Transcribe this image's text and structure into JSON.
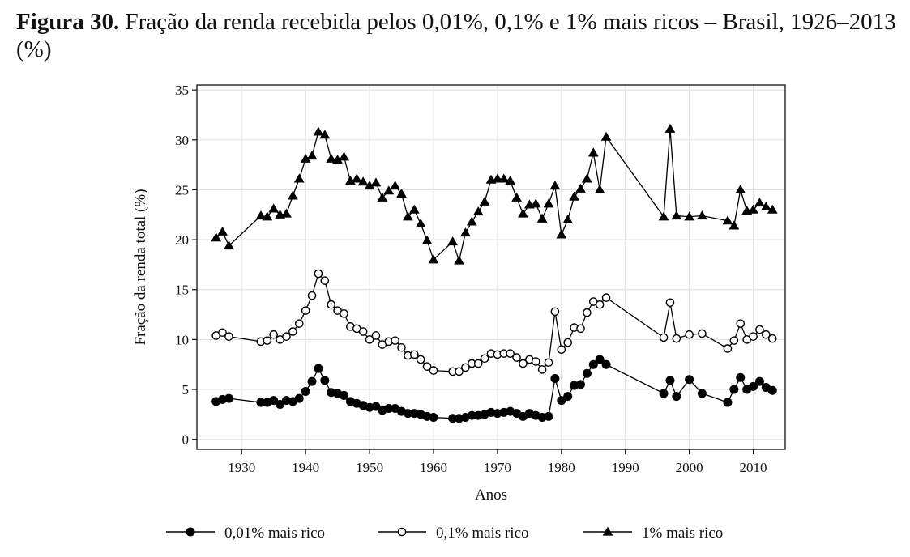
{
  "caption": {
    "label": "Figura 30.",
    "text": "Fração da renda recebida pelos 0,01%, 0,1% e 1% mais ricos – Brasil, 1926–2013 (%)"
  },
  "chart_data": {
    "type": "line",
    "title": "",
    "xlabel": "Anos",
    "ylabel": "Fração da renda total (%)",
    "xlim": [
      1923,
      2015
    ],
    "ylim": [
      -1,
      35.5
    ],
    "xticks": [
      1930,
      1940,
      1950,
      1960,
      1970,
      1980,
      1990,
      2000,
      2010
    ],
    "yticks": [
      0,
      5,
      10,
      15,
      20,
      25,
      30,
      35
    ],
    "grid": true,
    "legend_position": "bottom",
    "series": [
      {
        "name": "0,01% mais rico",
        "marker": "filled-circle",
        "points": [
          [
            1926,
            3.8
          ],
          [
            1927,
            4.0
          ],
          [
            1928,
            4.1
          ],
          [
            1933,
            3.7
          ],
          [
            1934,
            3.7
          ],
          [
            1935,
            3.9
          ],
          [
            1936,
            3.5
          ],
          [
            1937,
            3.9
          ],
          [
            1938,
            3.8
          ],
          [
            1939,
            4.1
          ],
          [
            1940,
            4.8
          ],
          [
            1941,
            5.8
          ],
          [
            1942,
            7.1
          ],
          [
            1943,
            5.9
          ],
          [
            1944,
            4.7
          ],
          [
            1945,
            4.6
          ],
          [
            1946,
            4.4
          ],
          [
            1947,
            3.8
          ],
          [
            1948,
            3.6
          ],
          [
            1949,
            3.4
          ],
          [
            1950,
            3.2
          ],
          [
            1951,
            3.3
          ],
          [
            1952,
            2.9
          ],
          [
            1953,
            3.1
          ],
          [
            1954,
            3.1
          ],
          [
            1955,
            2.8
          ],
          [
            1956,
            2.6
          ],
          [
            1957,
            2.6
          ],
          [
            1958,
            2.5
          ],
          [
            1959,
            2.3
          ],
          [
            1960,
            2.2
          ],
          [
            1963,
            2.1
          ],
          [
            1964,
            2.1
          ],
          [
            1965,
            2.2
          ],
          [
            1966,
            2.4
          ],
          [
            1967,
            2.4
          ],
          [
            1968,
            2.5
          ],
          [
            1969,
            2.7
          ],
          [
            1970,
            2.6
          ],
          [
            1971,
            2.7
          ],
          [
            1972,
            2.8
          ],
          [
            1973,
            2.6
          ],
          [
            1974,
            2.3
          ],
          [
            1975,
            2.6
          ],
          [
            1976,
            2.4
          ],
          [
            1977,
            2.2
          ],
          [
            1978,
            2.3
          ],
          [
            1979,
            6.1
          ],
          [
            1980,
            3.9
          ],
          [
            1981,
            4.3
          ],
          [
            1982,
            5.4
          ],
          [
            1983,
            5.5
          ],
          [
            1984,
            6.6
          ],
          [
            1985,
            7.5
          ],
          [
            1986,
            8.0
          ],
          [
            1987,
            7.5
          ],
          [
            1996,
            4.6
          ],
          [
            1997,
            5.9
          ],
          [
            1998,
            4.3
          ],
          [
            2000,
            6.0
          ],
          [
            2002,
            4.6
          ],
          [
            2006,
            3.7
          ],
          [
            2007,
            5.0
          ],
          [
            2008,
            6.2
          ],
          [
            2009,
            5.0
          ],
          [
            2010,
            5.3
          ],
          [
            2011,
            5.8
          ],
          [
            2012,
            5.2
          ],
          [
            2013,
            4.9
          ]
        ]
      },
      {
        "name": "0,1% mais rico",
        "marker": "open-circle",
        "points": [
          [
            1926,
            10.4
          ],
          [
            1927,
            10.7
          ],
          [
            1928,
            10.3
          ],
          [
            1933,
            9.8
          ],
          [
            1934,
            9.9
          ],
          [
            1935,
            10.5
          ],
          [
            1936,
            10.0
          ],
          [
            1937,
            10.3
          ],
          [
            1938,
            10.8
          ],
          [
            1939,
            11.6
          ],
          [
            1940,
            12.9
          ],
          [
            1941,
            14.4
          ],
          [
            1942,
            16.6
          ],
          [
            1943,
            15.9
          ],
          [
            1944,
            13.5
          ],
          [
            1945,
            12.9
          ],
          [
            1946,
            12.6
          ],
          [
            1947,
            11.3
          ],
          [
            1948,
            11.1
          ],
          [
            1949,
            10.8
          ],
          [
            1950,
            10.0
          ],
          [
            1951,
            10.4
          ],
          [
            1952,
            9.5
          ],
          [
            1953,
            9.8
          ],
          [
            1954,
            9.9
          ],
          [
            1955,
            9.2
          ],
          [
            1956,
            8.4
          ],
          [
            1957,
            8.5
          ],
          [
            1958,
            8.0
          ],
          [
            1959,
            7.3
          ],
          [
            1960,
            6.9
          ],
          [
            1963,
            6.8
          ],
          [
            1964,
            6.8
          ],
          [
            1965,
            7.2
          ],
          [
            1966,
            7.6
          ],
          [
            1967,
            7.6
          ],
          [
            1968,
            8.1
          ],
          [
            1969,
            8.6
          ],
          [
            1970,
            8.5
          ],
          [
            1971,
            8.6
          ],
          [
            1972,
            8.6
          ],
          [
            1973,
            8.2
          ],
          [
            1974,
            7.6
          ],
          [
            1975,
            8.0
          ],
          [
            1976,
            7.8
          ],
          [
            1977,
            7.0
          ],
          [
            1978,
            7.7
          ],
          [
            1979,
            12.8
          ],
          [
            1980,
            9.0
          ],
          [
            1981,
            9.7
          ],
          [
            1982,
            11.2
          ],
          [
            1983,
            11.1
          ],
          [
            1984,
            12.7
          ],
          [
            1985,
            13.8
          ],
          [
            1986,
            13.5
          ],
          [
            1987,
            14.2
          ],
          [
            1996,
            10.2
          ],
          [
            1997,
            13.7
          ],
          [
            1998,
            10.1
          ],
          [
            2000,
            10.5
          ],
          [
            2002,
            10.6
          ],
          [
            2006,
            9.1
          ],
          [
            2007,
            9.9
          ],
          [
            2008,
            11.6
          ],
          [
            2009,
            10.0
          ],
          [
            2010,
            10.3
          ],
          [
            2011,
            11.0
          ],
          [
            2012,
            10.5
          ],
          [
            2013,
            10.1
          ]
        ]
      },
      {
        "name": "1% mais rico",
        "marker": "filled-triangle",
        "points": [
          [
            1926,
            20.2
          ],
          [
            1927,
            20.8
          ],
          [
            1928,
            19.4
          ],
          [
            1933,
            22.4
          ],
          [
            1934,
            22.3
          ],
          [
            1935,
            23.1
          ],
          [
            1936,
            22.5
          ],
          [
            1937,
            22.6
          ],
          [
            1938,
            24.4
          ],
          [
            1939,
            26.1
          ],
          [
            1940,
            28.1
          ],
          [
            1941,
            28.4
          ],
          [
            1942,
            30.8
          ],
          [
            1943,
            30.5
          ],
          [
            1944,
            28.1
          ],
          [
            1945,
            28.0
          ],
          [
            1946,
            28.3
          ],
          [
            1947,
            25.9
          ],
          [
            1948,
            26.1
          ],
          [
            1949,
            25.8
          ],
          [
            1950,
            25.4
          ],
          [
            1951,
            25.7
          ],
          [
            1952,
            24.2
          ],
          [
            1953,
            24.9
          ],
          [
            1954,
            25.4
          ],
          [
            1955,
            24.6
          ],
          [
            1956,
            22.3
          ],
          [
            1957,
            23.0
          ],
          [
            1958,
            21.6
          ],
          [
            1959,
            19.9
          ],
          [
            1960,
            18.0
          ],
          [
            1963,
            19.8
          ],
          [
            1964,
            17.9
          ],
          [
            1965,
            20.7
          ],
          [
            1966,
            21.8
          ],
          [
            1967,
            22.8
          ],
          [
            1968,
            23.8
          ],
          [
            1969,
            26.0
          ],
          [
            1970,
            26.1
          ],
          [
            1971,
            26.1
          ],
          [
            1972,
            25.9
          ],
          [
            1973,
            24.2
          ],
          [
            1974,
            22.6
          ],
          [
            1975,
            23.5
          ],
          [
            1976,
            23.6
          ],
          [
            1977,
            22.1
          ],
          [
            1978,
            23.6
          ],
          [
            1979,
            25.4
          ],
          [
            1980,
            20.5
          ],
          [
            1981,
            22.0
          ],
          [
            1982,
            24.3
          ],
          [
            1983,
            25.1
          ],
          [
            1984,
            26.1
          ],
          [
            1985,
            28.7
          ],
          [
            1986,
            25.0
          ],
          [
            1987,
            30.3
          ],
          [
            1996,
            22.3
          ],
          [
            1997,
            31.1
          ],
          [
            1998,
            22.4
          ],
          [
            2000,
            22.3
          ],
          [
            2002,
            22.4
          ],
          [
            2006,
            21.9
          ],
          [
            2007,
            21.4
          ],
          [
            2008,
            25.0
          ],
          [
            2009,
            22.9
          ],
          [
            2010,
            23.0
          ],
          [
            2011,
            23.7
          ],
          [
            2012,
            23.3
          ],
          [
            2013,
            23.0
          ]
        ]
      }
    ]
  }
}
